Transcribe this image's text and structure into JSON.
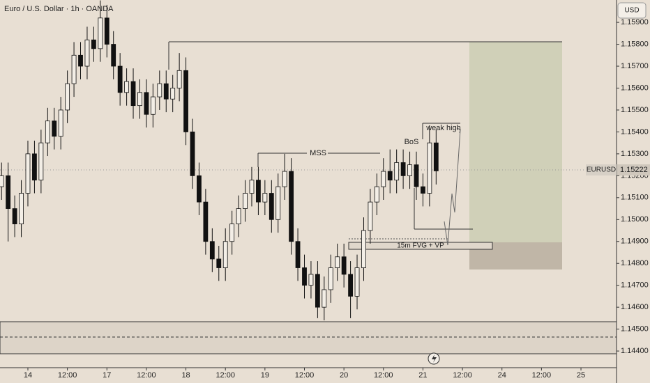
{
  "chart_data": {
    "type": "candlestick",
    "title": "Euro / U.S. Dollar · 1h · OANDA",
    "currency": "USD",
    "symbol": "EURUSD",
    "last_price_label": "1.15222",
    "up_color": "#f3eee6",
    "down_color": "#111111",
    "x": [
      -8,
      -6,
      -4,
      -2,
      0,
      2,
      4,
      6,
      8,
      10,
      12,
      14,
      16,
      18,
      20,
      22,
      24,
      26,
      28,
      30,
      32,
      34,
      36,
      38,
      40,
      42,
      44,
      46,
      48,
      50,
      52,
      54,
      56,
      58,
      60,
      62,
      64,
      66,
      68,
      70,
      72,
      74,
      76,
      78,
      80,
      82,
      84,
      86,
      88,
      90,
      92,
      94,
      96,
      98,
      100,
      102,
      104,
      106,
      108,
      110,
      112,
      114,
      116,
      118,
      120,
      122,
      124
    ],
    "open": [
      1.1515,
      1.152,
      1.1505,
      1.1498,
      1.1512,
      1.153,
      1.1518,
      1.1535,
      1.1545,
      1.1538,
      1.155,
      1.1562,
      1.1575,
      1.157,
      1.1582,
      1.1578,
      1.1592,
      1.158,
      1.157,
      1.1558,
      1.1563,
      1.1552,
      1.1558,
      1.1548,
      1.1556,
      1.1562,
      1.1555,
      1.156,
      1.1568,
      1.154,
      1.152,
      1.1508,
      1.149,
      1.1482,
      1.1478,
      1.149,
      1.1498,
      1.1505,
      1.1512,
      1.1518,
      1.1508,
      1.1512,
      1.15,
      1.1515,
      1.1522,
      1.149,
      1.1478,
      1.147,
      1.1475,
      1.146,
      1.1468,
      1.1478,
      1.1483,
      1.1475,
      1.1465,
      1.1478,
      1.1495,
      1.1508,
      1.1515,
      1.1522,
      1.1518,
      1.1526,
      1.152,
      1.1525,
      1.1515,
      1.1512,
      1.1535
    ],
    "high": [
      1.1526,
      1.1526,
      1.1511,
      1.1518,
      1.1536,
      1.1536,
      1.1541,
      1.1551,
      1.1551,
      1.1556,
      1.1568,
      1.1581,
      1.1581,
      1.1588,
      1.1588,
      1.16,
      1.1598,
      1.1586,
      1.1576,
      1.1569,
      1.1569,
      1.1564,
      1.1564,
      1.1562,
      1.1568,
      1.1568,
      1.1566,
      1.1576,
      1.1574,
      1.1546,
      1.1526,
      1.1514,
      1.1496,
      1.1488,
      1.1496,
      1.1504,
      1.1511,
      1.1518,
      1.1524,
      1.1524,
      1.1518,
      1.1518,
      1.1521,
      1.153,
      1.1528,
      1.1496,
      1.1484,
      1.1481,
      1.1481,
      1.1474,
      1.1484,
      1.1489,
      1.1489,
      1.1481,
      1.1484,
      1.1501,
      1.1514,
      1.1521,
      1.1528,
      1.1532,
      1.1532,
      1.1532,
      1.1531,
      1.1531,
      1.1521,
      1.1543,
      1.1541
    ],
    "low": [
      1.1509,
      1.149,
      1.1492,
      1.1492,
      1.1506,
      1.1512,
      1.1512,
      1.1529,
      1.1532,
      1.1532,
      1.1544,
      1.1556,
      1.1564,
      1.1564,
      1.1572,
      1.1572,
      1.1574,
      1.1564,
      1.1552,
      1.1552,
      1.1546,
      1.1546,
      1.1542,
      1.1542,
      1.155,
      1.1549,
      1.1549,
      1.1554,
      1.1534,
      1.1514,
      1.1502,
      1.1484,
      1.1476,
      1.1472,
      1.1472,
      1.1484,
      1.1492,
      1.1499,
      1.1506,
      1.1502,
      1.1502,
      1.1494,
      1.1494,
      1.1509,
      1.1484,
      1.1472,
      1.1464,
      1.1464,
      1.1455,
      1.1454,
      1.1462,
      1.1472,
      1.1469,
      1.1455,
      1.1459,
      1.1472,
      1.1489,
      1.1502,
      1.1509,
      1.1512,
      1.1512,
      1.1514,
      1.1514,
      1.1509,
      1.1506,
      1.1506,
      1.1516
    ],
    "close": [
      1.152,
      1.1505,
      1.1498,
      1.1512,
      1.153,
      1.1518,
      1.1535,
      1.1545,
      1.1538,
      1.155,
      1.1562,
      1.1575,
      1.157,
      1.1582,
      1.1578,
      1.1592,
      1.158,
      1.157,
      1.1558,
      1.1563,
      1.1552,
      1.1558,
      1.1548,
      1.1556,
      1.1562,
      1.1555,
      1.156,
      1.1568,
      1.154,
      1.152,
      1.1508,
      1.149,
      1.1482,
      1.1478,
      1.149,
      1.1498,
      1.1505,
      1.1512,
      1.1518,
      1.1508,
      1.1512,
      1.15,
      1.1515,
      1.1522,
      1.149,
      1.1478,
      1.147,
      1.1475,
      1.146,
      1.1468,
      1.1478,
      1.1483,
      1.1475,
      1.1465,
      1.1478,
      1.1495,
      1.1508,
      1.1515,
      1.1522,
      1.1518,
      1.1526,
      1.152,
      1.1525,
      1.1515,
      1.1512,
      1.1535,
      1.15222
    ],
    "xlim": [
      -8.47,
      178.8
    ],
    "ylim": [
      1.14324,
      1.16002
    ],
    "xticks": [
      {
        "value": 0,
        "label": "14"
      },
      {
        "value": 12,
        "label": "12:00"
      },
      {
        "value": 24,
        "label": "17"
      },
      {
        "value": 36,
        "label": "12:00"
      },
      {
        "value": 48,
        "label": "18"
      },
      {
        "value": 60,
        "label": "12:00"
      },
      {
        "value": 72,
        "label": "19"
      },
      {
        "value": 84,
        "label": "12:00"
      },
      {
        "value": 96,
        "label": "20"
      },
      {
        "value": 108,
        "label": "12:00"
      },
      {
        "value": 120,
        "label": "21"
      },
      {
        "value": 132,
        "label": "12:00"
      },
      {
        "value": 144,
        "label": "24"
      },
      {
        "value": 156,
        "label": "12:00"
      },
      {
        "value": 168,
        "label": "25"
      }
    ],
    "yticks": [
      {
        "value": 1.144,
        "label": "1.14400"
      },
      {
        "value": 1.145,
        "label": "1.14500"
      },
      {
        "value": 1.146,
        "label": "1.14600"
      },
      {
        "value": 1.147,
        "label": "1.14700"
      },
      {
        "value": 1.148,
        "label": "1.14800"
      },
      {
        "value": 1.149,
        "label": "1.14900"
      },
      {
        "value": 1.15,
        "label": "1.15000"
      },
      {
        "value": 1.151,
        "label": "1.15100"
      },
      {
        "value": 1.152,
        "label": "1.15200"
      },
      {
        "value": 1.153,
        "label": "1.15300"
      },
      {
        "value": 1.154,
        "label": "1.15400"
      },
      {
        "value": 1.155,
        "label": "1.15500"
      },
      {
        "value": 1.156,
        "label": "1.15600"
      },
      {
        "value": 1.157,
        "label": "1.15700"
      },
      {
        "value": 1.158,
        "label": "1.15800"
      },
      {
        "value": 1.159,
        "label": "1.15900"
      }
    ],
    "annotations": {
      "mss": "MSS",
      "bos": "BoS",
      "weak_high": "weak high",
      "fvg": "15m FVG + VP"
    }
  }
}
